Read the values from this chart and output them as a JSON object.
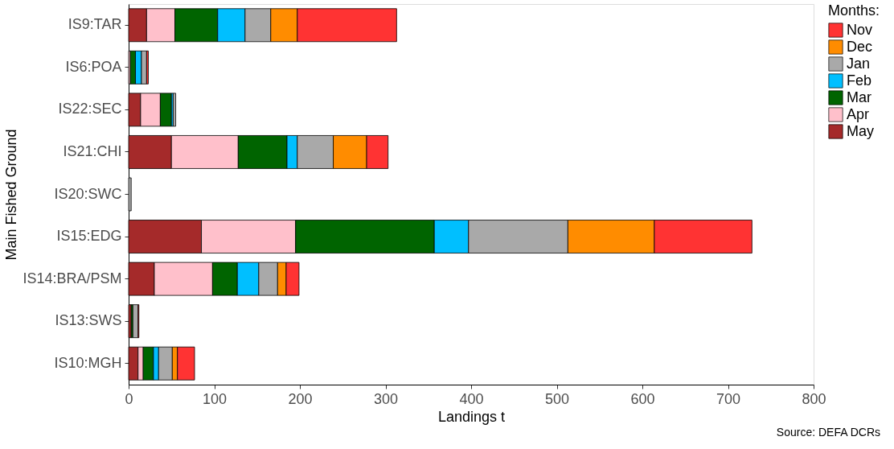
{
  "chart_data": {
    "type": "bar",
    "orientation": "horizontal",
    "stacked": true,
    "xlabel": "Landings t",
    "ylabel": "Main Fished Ground",
    "legend_title": "Months:",
    "legend": "right",
    "grid": false,
    "annotations": [
      "Source: DEFA DCRs"
    ],
    "categories": [
      "IS9:TAR",
      "IS6:POA",
      "IS22:SEC",
      "IS21:CHI",
      "IS20:SWC",
      "IS15:EDG",
      "IS14:BRA/PSM",
      "IS13:SWS",
      "IS10:MGH"
    ],
    "xlim": [
      0,
      800
    ],
    "xticks": [
      0,
      100,
      200,
      300,
      400,
      500,
      600,
      700,
      800
    ],
    "series": [
      {
        "name": "May",
        "color": "#a52a2a",
        "values": [
          21,
          null,
          14,
          50,
          null,
          85,
          30,
          3,
          11
        ]
      },
      {
        "name": "Apr",
        "color": "#ffc0cb",
        "values": [
          33,
          2,
          23,
          78,
          null,
          110,
          68,
          null,
          6
        ]
      },
      {
        "name": "Mar",
        "color": "#006400",
        "values": [
          50,
          6,
          13,
          57,
          null,
          162,
          29,
          2,
          12
        ]
      },
      {
        "name": "Feb",
        "color": "#00bfff",
        "values": [
          32,
          7,
          2,
          12,
          null,
          40,
          25,
          null,
          6
        ]
      },
      {
        "name": "Jan",
        "color": "#a9a9a9",
        "values": [
          30,
          6,
          3,
          42,
          3,
          116,
          22,
          6,
          16
        ]
      },
      {
        "name": "Dec",
        "color": "#ff8c00",
        "values": [
          31,
          null,
          null,
          39,
          null,
          101,
          10,
          null,
          6
        ]
      },
      {
        "name": "Nov",
        "color": "#ff3333",
        "values": [
          116,
          2,
          null,
          25,
          null,
          114,
          15,
          1,
          20
        ]
      }
    ]
  }
}
